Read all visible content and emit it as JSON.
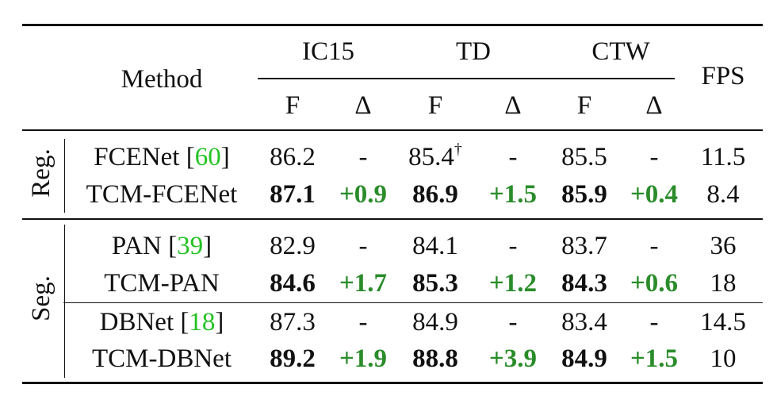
{
  "header": {
    "method": "Method",
    "datasets": [
      "IC15",
      "TD",
      "CTW"
    ],
    "fps": "FPS",
    "sub": [
      "F",
      "Δ",
      "F",
      "Δ",
      "F",
      "Δ"
    ]
  },
  "groups": [
    {
      "label": "Reg.",
      "rows": [
        {
          "name": "FCENet [",
          "ref": "60",
          "close": "]",
          "ic15_f": "86.2",
          "ic15_d": "-",
          "td_f": "85.4",
          "td_sup": "†",
          "td_d": "-",
          "ctw_f": "85.5",
          "ctw_d": "-",
          "fps": "11.5"
        },
        {
          "name": "TCM-FCENet",
          "ic15_f": "87.1",
          "ic15_d": "+0.9",
          "td_f": "86.9",
          "td_d": "+1.5",
          "ctw_f": "85.9",
          "ctw_d": "+0.4",
          "fps": "8.4"
        }
      ]
    },
    {
      "label": "Seg.",
      "rows": [
        {
          "name": "PAN [",
          "ref": "39",
          "close": "]",
          "ic15_f": "82.9",
          "ic15_d": "-",
          "td_f": "84.1",
          "td_d": "-",
          "ctw_f": "83.7",
          "ctw_d": "-",
          "fps": "36"
        },
        {
          "name": "TCM-PAN",
          "ic15_f": "84.6",
          "ic15_d": "+1.7",
          "td_f": "85.3",
          "td_d": "+1.2",
          "ctw_f": "84.3",
          "ctw_d": "+0.6",
          "fps": "18"
        },
        {
          "name": "DBNet [",
          "ref": "18",
          "close": "]",
          "ic15_f": "87.3",
          "ic15_d": "-",
          "td_f": "84.9",
          "td_d": "-",
          "ctw_f": "83.4",
          "ctw_d": "-",
          "fps": "14.5"
        },
        {
          "name": "TCM-DBNet",
          "ic15_f": "89.2",
          "ic15_d": "+1.9",
          "td_f": "88.8",
          "td_d": "+3.9",
          "ctw_f": "84.9",
          "ctw_d": "+1.5",
          "fps": "10"
        }
      ]
    }
  ]
}
